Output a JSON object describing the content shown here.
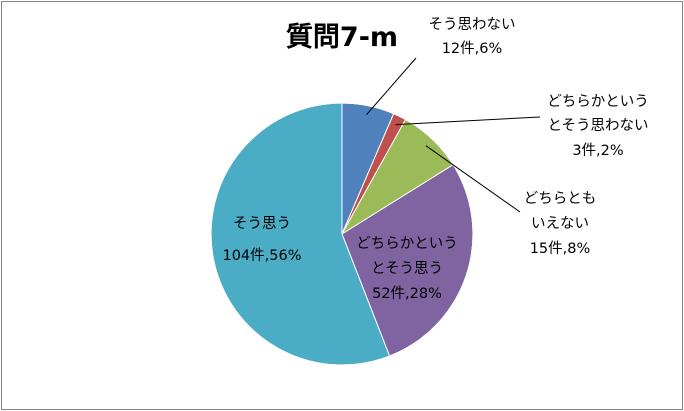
{
  "chart_data": {
    "type": "pie",
    "title": "質問7-m",
    "start_angle_deg": 0,
    "direction": "clockwise",
    "slices": [
      {
        "name": "そう思わない",
        "count_label": "12件,6%",
        "value": 12,
        "percent": 6,
        "color": "#4F81BD"
      },
      {
        "name": "どちらかというとそう思わない",
        "name_lines": [
          "どちらかという",
          "とそう思わない"
        ],
        "count_label": "3件,2%",
        "value": 3,
        "percent": 2,
        "color": "#C0504D"
      },
      {
        "name": "どちらともいえない",
        "name_lines": [
          "どちらとも",
          "いえない"
        ],
        "count_label": "15件,8%",
        "value": 15,
        "percent": 8,
        "color": "#9BBB59"
      },
      {
        "name": "どちらかというとそう思う",
        "name_lines": [
          "どちらかという",
          "とそう思う"
        ],
        "count_label": "52件,28%",
        "value": 52,
        "percent": 28,
        "color": "#8064A2"
      },
      {
        "name": "そう思う",
        "count_label": "104件,56%",
        "value": 104,
        "percent": 56,
        "color": "#4BACC6"
      }
    ]
  }
}
